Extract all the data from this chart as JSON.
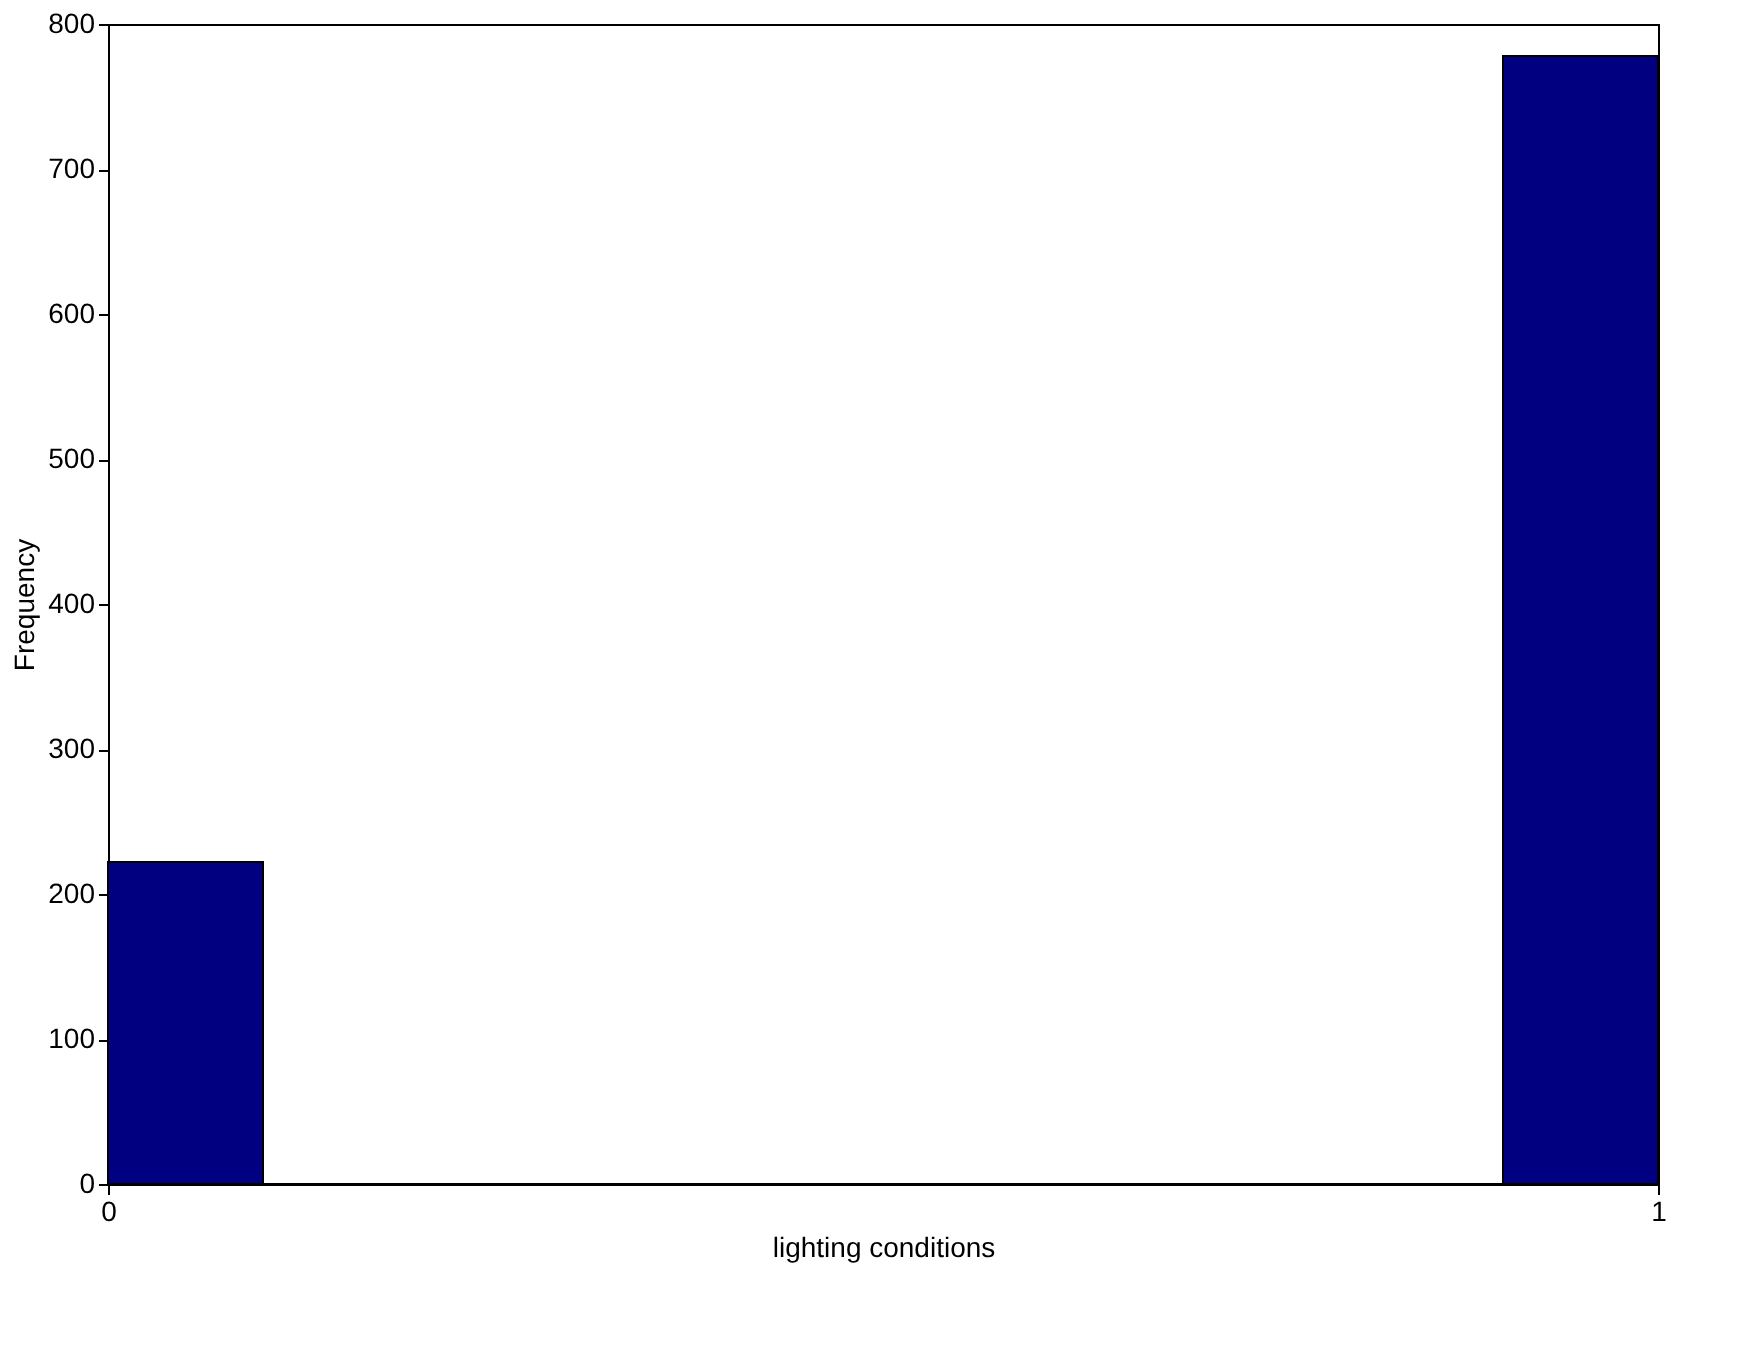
{
  "chart_data": {
    "type": "histogram",
    "xlabel": "lighting conditions",
    "ylabel": "Frequency",
    "bins": [
      0,
      0.1,
      0.2,
      0.3,
      0.4,
      0.5,
      0.6,
      0.7,
      0.8,
      0.9,
      1
    ],
    "values": [
      222,
      0,
      0,
      0,
      0,
      0,
      0,
      0,
      0,
      778
    ],
    "color": "#000080",
    "xlim": [
      0,
      1
    ],
    "xticks": [
      0,
      1
    ],
    "ylim": [
      0,
      800
    ],
    "yticks": [
      0,
      100,
      200,
      300,
      400,
      500,
      600,
      700,
      800
    ],
    "grid": false
  }
}
